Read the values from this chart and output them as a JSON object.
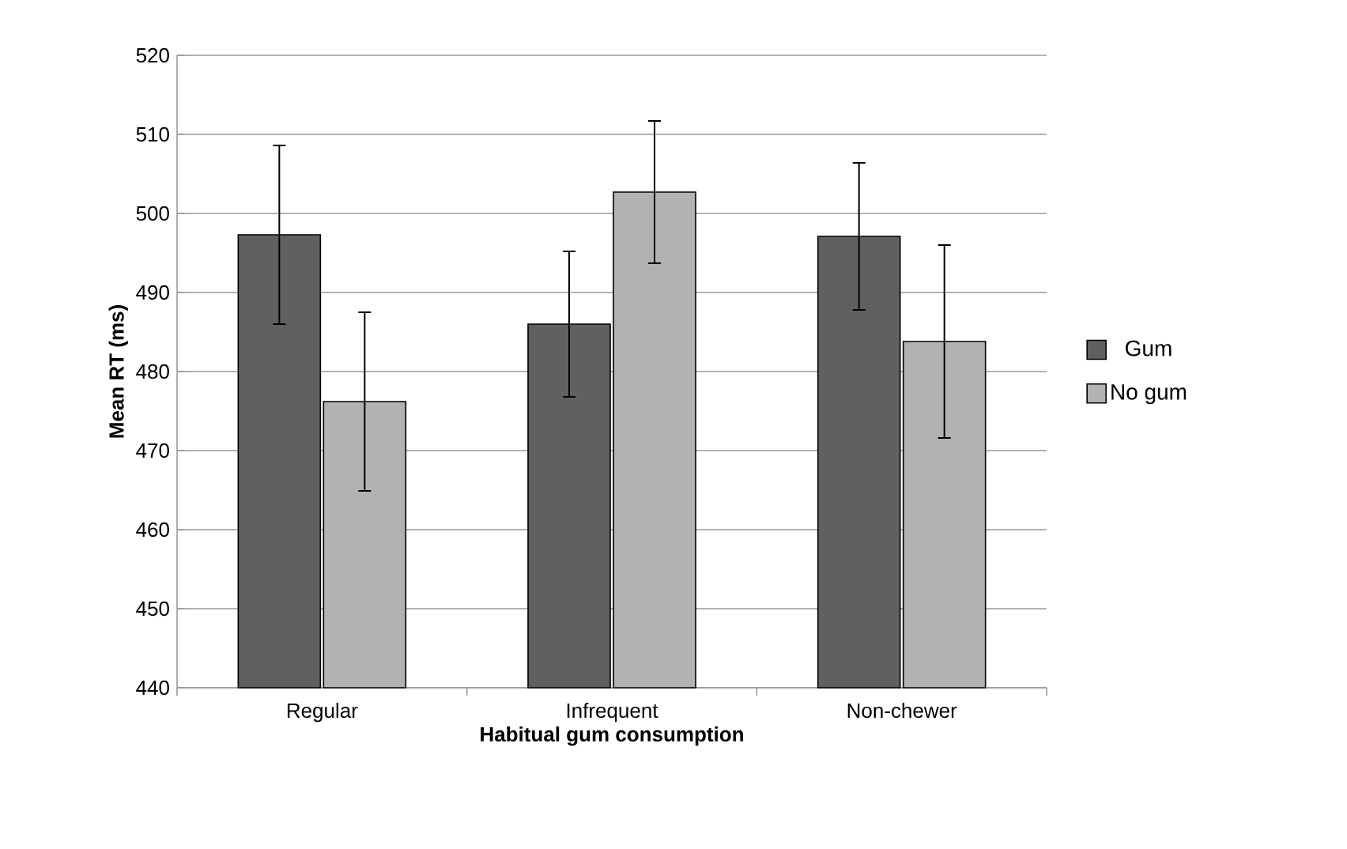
{
  "chart_data": {
    "type": "bar",
    "xlabel": "Habitual gum consumption",
    "ylabel": "Mean RT (ms)",
    "categories": [
      "Regular",
      "Infrequent",
      "Non-chewer"
    ],
    "series": [
      {
        "name": "Gum",
        "color": "#606060",
        "values": [
          497.3,
          486,
          497.1
        ],
        "errors": [
          11.3,
          9.2,
          9.3
        ]
      },
      {
        "name": "No gum",
        "color": "#b2b2b2",
        "values": [
          476.2,
          502.7,
          483.8
        ],
        "errors": [
          11.3,
          9,
          12.2
        ]
      }
    ],
    "ylim": [
      440,
      520
    ],
    "yticks": [
      440,
      450,
      460,
      470,
      480,
      490,
      500,
      510,
      520
    ],
    "grid": "y",
    "legend": "right"
  }
}
